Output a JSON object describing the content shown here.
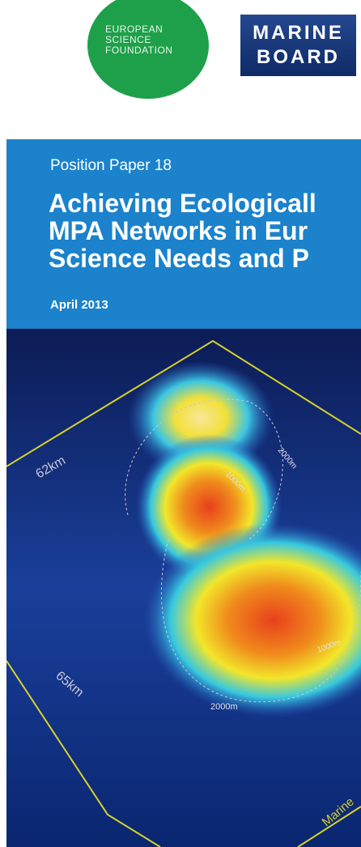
{
  "header": {
    "esf_logo": [
      "EUROPEAN",
      "SCIENCE",
      "FOUNDATION"
    ],
    "marine_board_logo": [
      "MARINE",
      "BOARD"
    ]
  },
  "cover": {
    "series": "Position Paper 18",
    "title_lines": [
      "Achieving Ecologicall",
      "MPA Networks in Eur",
      "Science Needs and P"
    ],
    "date": "April 2013"
  },
  "image_labels": [
    "62km",
    "65km",
    "2000m",
    "1000m",
    "2000m",
    "1000m",
    "Marine"
  ]
}
